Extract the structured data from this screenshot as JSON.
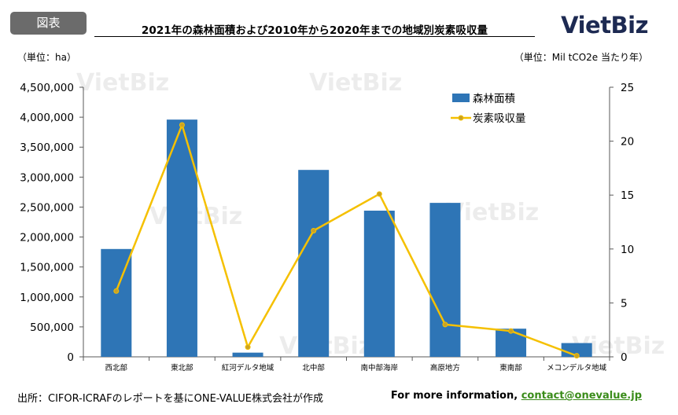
{
  "header": {
    "badge": "図表",
    "title": "2021年の森林面積および2010年から2020年までの地域別炭素吸収量",
    "logo": "VietBiz",
    "unit_left": "（単位：ha）",
    "unit_right": "（単位：Mil tCO2e 当たり年）"
  },
  "watermark": "VietBiz",
  "footer": {
    "source": "出所：CIFOR-ICRAFのレポートを基にONE-VALUE株式会社が作成",
    "more_info_prefix": "For more information, ",
    "contact": "contact@onevalue.jp"
  },
  "colors": {
    "bar": "#2e75b6",
    "line": "#f5c000",
    "line_marker": "#c9a227",
    "axis": "#595959"
  },
  "chart_data": {
    "type": "bar",
    "categories": [
      "西北部",
      "東北部",
      "紅河デルタ地域",
      "北中部",
      "南中部海岸",
      "高原地方",
      "東南部",
      "メコンデルタ地域"
    ],
    "series": [
      {
        "name": "森林面積",
        "type": "bar",
        "axis": "left",
        "values": [
          1800000,
          3960000,
          70000,
          3120000,
          2440000,
          2570000,
          470000,
          230000
        ]
      },
      {
        "name": "炭素吸収量",
        "type": "line",
        "axis": "right",
        "values": [
          6.1,
          21.5,
          0.9,
          11.7,
          15.1,
          3.0,
          2.4,
          0.1
        ]
      }
    ],
    "y_left": {
      "min": 0,
      "max": 4500000,
      "step": 500000,
      "ticks": [
        "0",
        "500,000",
        "1,000,000",
        "1,500,000",
        "2,000,000",
        "2,500,000",
        "3,000,000",
        "3,500,000",
        "4,000,000",
        "4,500,000"
      ]
    },
    "y_right": {
      "min": 0,
      "max": 25,
      "step": 5,
      "ticks": [
        "0",
        "5",
        "10",
        "15",
        "20",
        "25"
      ]
    },
    "legend_position": "top-right",
    "grid": false
  }
}
